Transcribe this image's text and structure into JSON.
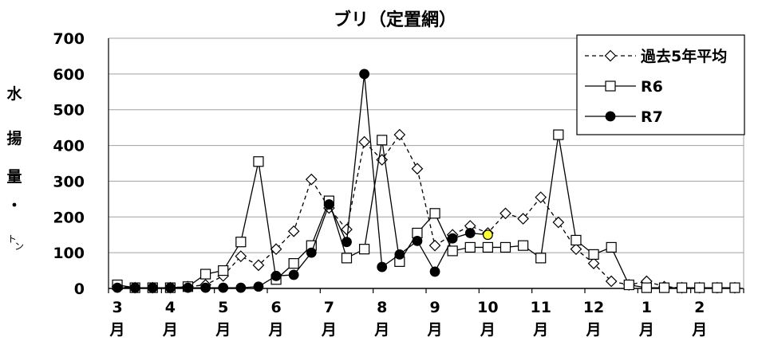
{
  "chart_data": {
    "type": "line",
    "title": "ブリ（定置網）",
    "ylabel_chars": [
      "水",
      "揚",
      "量",
      "・",
      "ト",
      "ン"
    ],
    "ylim": [
      0,
      700
    ],
    "yticks": [
      0,
      100,
      200,
      300,
      400,
      500,
      600,
      700
    ],
    "month_labels": [
      {
        "num": "3",
        "unit": "月"
      },
      {
        "num": "4",
        "unit": "月"
      },
      {
        "num": "5",
        "unit": "月"
      },
      {
        "num": "6",
        "unit": "月"
      },
      {
        "num": "7",
        "unit": "月"
      },
      {
        "num": "8",
        "unit": "月"
      },
      {
        "num": "9",
        "unit": "月"
      },
      {
        "num": "10",
        "unit": "月"
      },
      {
        "num": "11",
        "unit": "月"
      },
      {
        "num": "12",
        "unit": "月"
      },
      {
        "num": "1",
        "unit": "月"
      },
      {
        "num": "2",
        "unit": "月"
      }
    ],
    "periods_per_month": 3,
    "grid": true,
    "legend_position": "top-right",
    "series": [
      {
        "name": "過去5年平均",
        "marker": "diamond",
        "dashed": true,
        "values": [
          5,
          2,
          2,
          2,
          5,
          10,
          35,
          90,
          65,
          110,
          160,
          305,
          225,
          165,
          410,
          360,
          430,
          335,
          120,
          150,
          175,
          155,
          210,
          195,
          255,
          185,
          110,
          70,
          20,
          10,
          20,
          5,
          2,
          2,
          2,
          2
        ]
      },
      {
        "name": "R6",
        "marker": "square",
        "dashed": false,
        "values": [
          10,
          2,
          2,
          2,
          5,
          40,
          50,
          130,
          355,
          25,
          70,
          120,
          245,
          85,
          110,
          415,
          75,
          155,
          210,
          105,
          115,
          115,
          115,
          120,
          85,
          430,
          135,
          95,
          115,
          10,
          2,
          2,
          2,
          2,
          2,
          2
        ]
      },
      {
        "name": "R7",
        "marker": "circle",
        "dashed": false,
        "values": [
          2,
          2,
          2,
          2,
          2,
          2,
          2,
          2,
          5,
          35,
          38,
          100,
          235,
          130,
          600,
          60,
          95,
          133,
          47,
          140,
          155,
          150
        ]
      }
    ],
    "highlight": {
      "series": "R7",
      "index": 21,
      "color": "#ffff33"
    }
  }
}
